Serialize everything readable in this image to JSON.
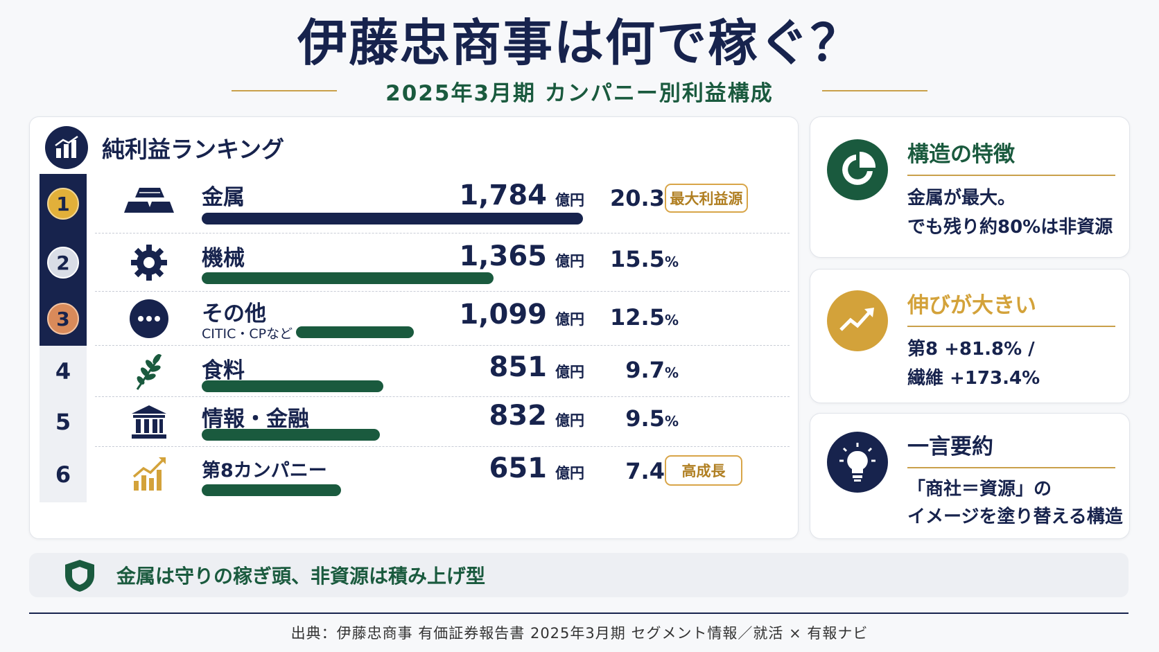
{
  "title": "伊藤忠商事は何で稼ぐ？",
  "subtitle": "2025年3月期 カンパニー別利益構成",
  "ranking": {
    "title": "純利益ランキング",
    "unit": "億円",
    "rows": [
      {
        "rank": "1",
        "name": "金属",
        "sub": "",
        "value": "1,784",
        "pct": "20.3",
        "tag": "最大利益源",
        "icon": "gold-bars-icon"
      },
      {
        "rank": "2",
        "name": "機械",
        "sub": "",
        "value": "1,365",
        "pct": "15.5",
        "tag": "",
        "icon": "gear-icon"
      },
      {
        "rank": "3",
        "name": "その他",
        "sub": "CITIC・CPなど",
        "value": "1,099",
        "pct": "12.5",
        "tag": "",
        "icon": "more-dots-icon"
      },
      {
        "rank": "4",
        "name": "食料",
        "sub": "",
        "value": "851",
        "pct": "9.7",
        "tag": "",
        "icon": "wheat-icon"
      },
      {
        "rank": "5",
        "name": "情報・金融",
        "sub": "",
        "value": "832",
        "pct": "9.5",
        "tag": "",
        "icon": "bank-icon"
      },
      {
        "rank": "6",
        "name": "第8カンパニー",
        "sub": "",
        "value": "651",
        "pct": "7.4",
        "tag": "高成長",
        "icon": "growth-chart-icon"
      }
    ]
  },
  "chart_data": {
    "type": "bar",
    "title": "純利益ランキング",
    "categories": [
      "金属",
      "機械",
      "その他",
      "食料",
      "情報・金融",
      "第8カンパニー"
    ],
    "values": [
      1784,
      1365,
      1099,
      851,
      832,
      651
    ],
    "shares_percent": [
      20.3,
      15.5,
      12.5,
      9.7,
      9.5,
      7.4
    ],
    "unit": "億円",
    "orientation": "horizontal"
  },
  "cards": [
    {
      "title": "構造の特徴",
      "lines": [
        "金属が最大。",
        "でも残り約80%は非資源"
      ],
      "icon": "pie-chart-icon",
      "title_color": "#1a5a3e"
    },
    {
      "title": "伸びが大きい",
      "lines": [
        "第8 +81.8% /",
        "繊維 +173.4%"
      ],
      "icon": "trend-up-icon",
      "title_color": "#d3a23a"
    },
    {
      "title": "一言要約",
      "lines": [
        "「商社＝資源」の",
        "イメージを塗り替える構造"
      ],
      "icon": "lightbulb-icon",
      "title_color": "#17234d"
    }
  ],
  "banner": {
    "text": "金属は守りの稼ぎ頭、非資源は積み上げ型",
    "icon": "shield-icon"
  },
  "source": "出典：伊藤忠商事 有価証券報告書 2025年3月期 セグメント情報／就活 × 有報ナビ",
  "colors": {
    "navy": "#17234d",
    "green": "#1a5a3e",
    "gold": "#c9a04a"
  }
}
